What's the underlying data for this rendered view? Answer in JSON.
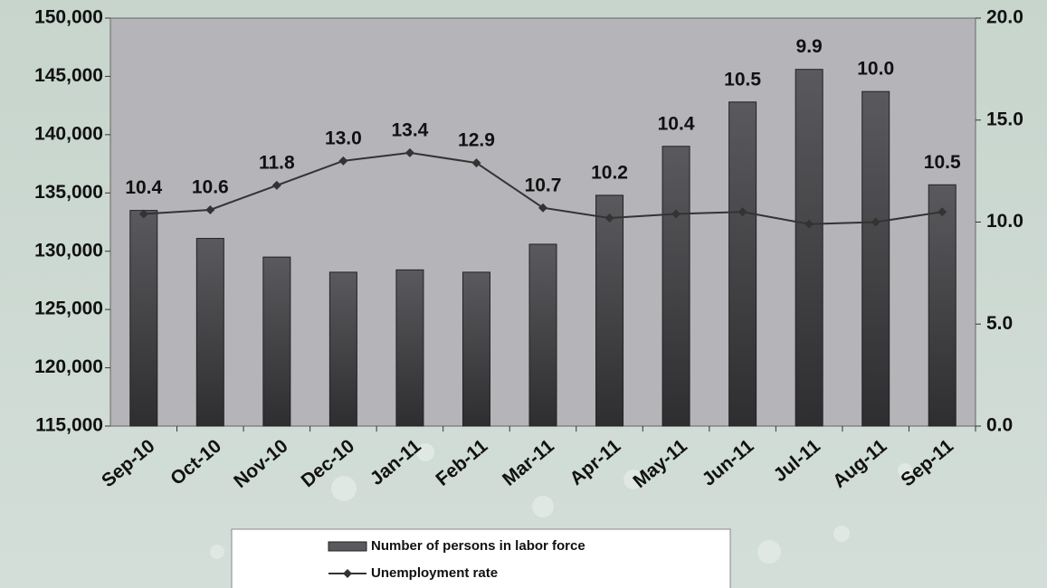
{
  "chart_data": {
    "type": "bar",
    "categories": [
      "Sep-10",
      "Oct-10",
      "Nov-10",
      "Dec-10",
      "Jan-11",
      "Feb-11",
      "Mar-11",
      "Apr-11",
      "May-11",
      "Jun-11",
      "Jul-11",
      "Aug-11",
      "Sep-11"
    ],
    "series": [
      {
        "name": "Number of persons in labor force",
        "type": "bar",
        "color": "#5a5a5e",
        "values": [
          133500,
          131100,
          129500,
          128200,
          128400,
          128200,
          130600,
          134800,
          139000,
          142800,
          145600,
          143700,
          135700
        ]
      },
      {
        "name": "Unemployment rate",
        "type": "line",
        "axis": "y2",
        "color": "#333333",
        "values": [
          10.4,
          10.6,
          11.8,
          13.0,
          13.4,
          12.9,
          10.7,
          10.2,
          10.4,
          10.5,
          9.9,
          10.0,
          10.5
        ],
        "value_labels": [
          "10.4",
          "10.6",
          "11.8",
          "13.0",
          "13.4",
          "12.9",
          "10.7",
          "10.2",
          "10.4",
          "10.5",
          "9.9",
          "10.0",
          "10.5"
        ]
      }
    ],
    "ylim": [
      115000,
      150000
    ],
    "yticks": [
      {
        "value": 115000,
        "label": "115,000"
      },
      {
        "value": 120000,
        "label": "120,000"
      },
      {
        "value": 125000,
        "label": "125,000"
      },
      {
        "value": 130000,
        "label": "130,000"
      },
      {
        "value": 135000,
        "label": "135,000"
      },
      {
        "value": 140000,
        "label": "140,000"
      },
      {
        "value": 145000,
        "label": "145,000"
      },
      {
        "value": 150000,
        "label": "150,000"
      }
    ],
    "y2lim": [
      0,
      20
    ],
    "y2ticks": [
      {
        "value": 0,
        "label": "0.0"
      },
      {
        "value": 5,
        "label": "5.0"
      },
      {
        "value": 10,
        "label": "10.0"
      },
      {
        "value": 15,
        "label": "15.0"
      },
      {
        "value": 20,
        "label": "20.0"
      }
    ],
    "legend": "bottom"
  }
}
